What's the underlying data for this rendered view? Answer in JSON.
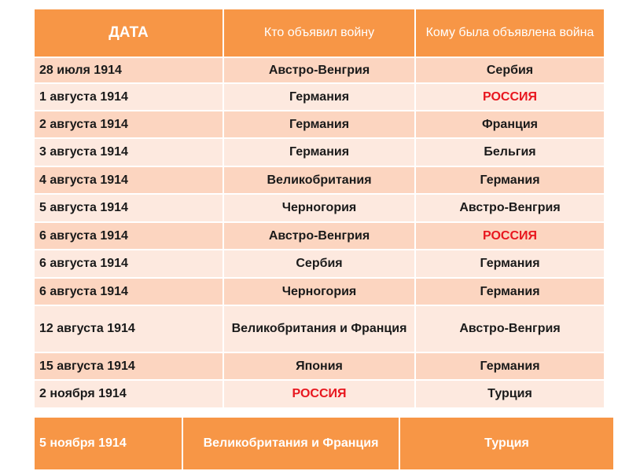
{
  "header": {
    "date": "ДАТА",
    "declarer": "Кто объявил войну",
    "target": "Кому была объявлена война"
  },
  "rows": [
    {
      "date": "28 июля 1914",
      "declarer": "Австро-Венгрия",
      "target": "Сербия"
    },
    {
      "date": "1 августа 1914",
      "declarer": "Германия",
      "target": "РОССИЯ"
    },
    {
      "date": "2 августа 1914",
      "declarer": "Германия",
      "target": "Франция"
    },
    {
      "date": "3 августа 1914",
      "declarer": "Германия",
      "target": "Бельгия"
    },
    {
      "date": "4 августа 1914",
      "declarer": "Великобритания",
      "target": "Германия"
    },
    {
      "date": "5 августа 1914",
      "declarer": "Черногория",
      "target": "Австро-Венгрия"
    },
    {
      "date": "6 августа 1914",
      "declarer": "Австро-Венгрия",
      "target": "РОССИЯ"
    },
    {
      "date": "6 августа 1914",
      "declarer": "Сербия",
      "target": "Германия"
    },
    {
      "date": "6 августа 1914",
      "declarer": "Черногория",
      "target": "Германия"
    },
    {
      "date": "12 августа 1914",
      "declarer": "Великобритания и Франция",
      "target": "Австро-Венгрия"
    },
    {
      "date": "15 августа 1914",
      "declarer": "Япония",
      "target": "Германия"
    },
    {
      "date": "2 ноября 1914",
      "declarer": "РОССИЯ",
      "target": "Турция"
    }
  ],
  "extra_row": {
    "date": "5 ноября 1914",
    "declarer": "Великобритания и Франция",
    "target": "Турция"
  },
  "colors": {
    "header": "#f79646",
    "row_odd": "#fcd5c0",
    "row_even": "#fde9df",
    "highlight": "#e8171f"
  }
}
